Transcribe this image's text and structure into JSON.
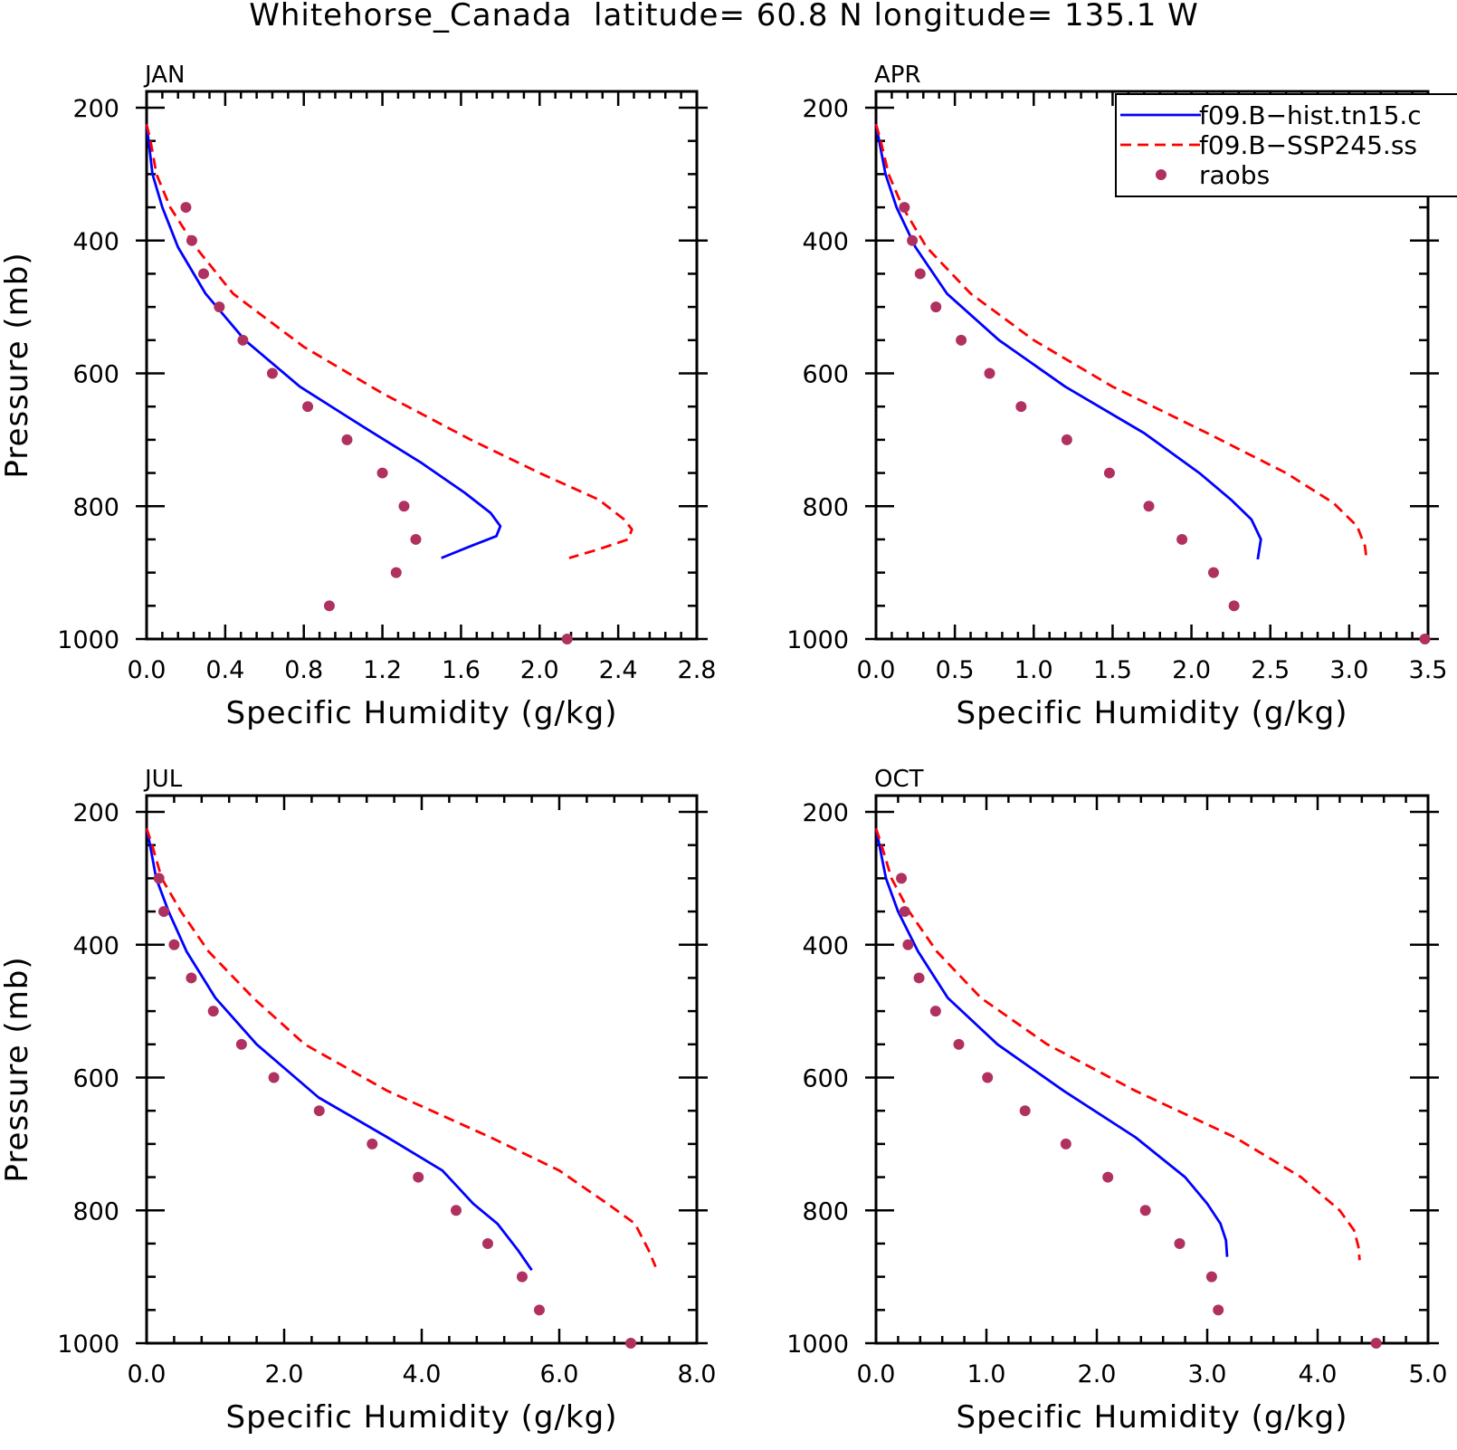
{
  "title": "Whitehorse_Canada  latitude= 60.8 N longitude= 135.1 W",
  "legend": {
    "entries": [
      {
        "label": "f09.B−hist.tn15.c",
        "style": "solid",
        "color": "#0000ff"
      },
      {
        "label": "f09.B−SSP245.ss",
        "style": "dashed",
        "color": "#ff0000"
      },
      {
        "label": "raobs",
        "style": "dot",
        "color": "#b03060"
      }
    ]
  },
  "chart_data": [
    {
      "type": "line",
      "panel": "JAN",
      "xlabel": "Specific Humidity (g/kg)",
      "ylabel": "Pressure (mb)",
      "xlim": [
        0,
        2.8
      ],
      "ylim": [
        1000,
        200
      ],
      "xticks": [
        "0.0",
        "0.4",
        "0.8",
        "1.2",
        "1.6",
        "2.0",
        "2.4",
        "2.8"
      ],
      "xtick_values": [
        0,
        0.4,
        0.8,
        1.2,
        1.6,
        2.0,
        2.4,
        2.8
      ],
      "yticks": [
        "200",
        "400",
        "600",
        "800",
        "1000"
      ],
      "ytick_values": [
        200,
        400,
        600,
        800,
        1000
      ],
      "series": [
        {
          "name": "f09.B−hist.tn15.c",
          "kind": "line",
          "color": "#0000ff",
          "dash": false,
          "x": [
            0.0,
            0.01,
            0.03,
            0.08,
            0.16,
            0.3,
            0.5,
            0.78,
            1.1,
            1.4,
            1.62,
            1.75,
            1.8,
            1.78,
            1.65,
            1.5
          ],
          "y": [
            225,
            250,
            300,
            350,
            410,
            480,
            550,
            620,
            680,
            735,
            780,
            810,
            830,
            845,
            860,
            878
          ]
        },
        {
          "name": "f09.B−SSP245.ss",
          "kind": "line",
          "color": "#ff0000",
          "dash": true,
          "x": [
            0.0,
            0.02,
            0.05,
            0.12,
            0.25,
            0.44,
            0.8,
            1.2,
            1.65,
            2.0,
            2.3,
            2.43,
            2.47,
            2.45,
            2.3,
            2.15
          ],
          "y": [
            225,
            250,
            300,
            350,
            410,
            480,
            560,
            630,
            700,
            750,
            790,
            820,
            835,
            850,
            865,
            878
          ]
        },
        {
          "name": "raobs",
          "kind": "scatter",
          "color": "#b03060",
          "x": [
            0.2,
            0.23,
            0.29,
            0.37,
            0.49,
            0.64,
            0.82,
            1.02,
            1.2,
            1.31,
            1.37,
            1.27,
            0.93,
            2.14
          ],
          "y": [
            350,
            400,
            450,
            500,
            550,
            600,
            650,
            700,
            750,
            800,
            850,
            900,
            950,
            1000
          ]
        }
      ]
    },
    {
      "type": "line",
      "panel": "APR",
      "xlabel": "Specific Humidity (g/kg)",
      "ylabel": "",
      "xlim": [
        0,
        3.5
      ],
      "ylim": [
        1000,
        200
      ],
      "xticks": [
        "0.0",
        "0.5",
        "1.0",
        "1.5",
        "2.0",
        "2.5",
        "3.0",
        "3.5"
      ],
      "xtick_values": [
        0,
        0.5,
        1.0,
        1.5,
        2.0,
        2.5,
        3.0,
        3.5
      ],
      "yticks": [
        "200",
        "400",
        "600",
        "800",
        "1000"
      ],
      "ytick_values": [
        200,
        400,
        600,
        800,
        1000
      ],
      "series": [
        {
          "name": "f09.B−hist.tn15.c",
          "kind": "line",
          "color": "#0000ff",
          "dash": false,
          "x": [
            0.0,
            0.02,
            0.06,
            0.13,
            0.25,
            0.45,
            0.78,
            1.2,
            1.7,
            2.05,
            2.25,
            2.38,
            2.44,
            2.42
          ],
          "y": [
            225,
            250,
            300,
            350,
            410,
            480,
            550,
            620,
            690,
            750,
            790,
            820,
            850,
            880
          ]
        },
        {
          "name": "f09.B−SSP245.ss",
          "kind": "line",
          "color": "#ff0000",
          "dash": true,
          "x": [
            0.0,
            0.03,
            0.08,
            0.17,
            0.32,
            0.6,
            1.0,
            1.5,
            2.1,
            2.6,
            2.9,
            3.05,
            3.1,
            3.11
          ],
          "y": [
            225,
            250,
            300,
            350,
            410,
            480,
            550,
            620,
            690,
            750,
            795,
            830,
            860,
            880
          ]
        },
        {
          "name": "raobs",
          "kind": "scatter",
          "color": "#b03060",
          "x": [
            0.18,
            0.23,
            0.28,
            0.38,
            0.54,
            0.72,
            0.92,
            1.21,
            1.48,
            1.73,
            1.94,
            2.14,
            2.27,
            3.48
          ],
          "y": [
            350,
            400,
            450,
            500,
            550,
            600,
            650,
            700,
            750,
            800,
            850,
            900,
            950,
            1000
          ]
        }
      ]
    },
    {
      "type": "line",
      "panel": "JUL",
      "xlabel": "Specific Humidity (g/kg)",
      "ylabel": "Pressure (mb)",
      "xlim": [
        0,
        8
      ],
      "ylim": [
        1000,
        200
      ],
      "xticks": [
        "0.0",
        "2.0",
        "4.0",
        "6.0",
        "8.0"
      ],
      "xtick_values": [
        0,
        2,
        4,
        6,
        8
      ],
      "yticks": [
        "200",
        "400",
        "600",
        "800",
        "1000"
      ],
      "ytick_values": [
        200,
        400,
        600,
        800,
        1000
      ],
      "series": [
        {
          "name": "f09.B−hist.tn15.c",
          "kind": "line",
          "color": "#0000ff",
          "dash": false,
          "x": [
            0.0,
            0.05,
            0.14,
            0.32,
            0.58,
            1.0,
            1.6,
            2.5,
            3.5,
            4.3,
            4.75,
            5.1,
            5.4,
            5.6
          ],
          "y": [
            225,
            250,
            300,
            350,
            410,
            480,
            550,
            630,
            690,
            740,
            790,
            820,
            860,
            890
          ]
        },
        {
          "name": "f09.B−SSP245.ss",
          "kind": "line",
          "color": "#ff0000",
          "dash": true,
          "x": [
            0.0,
            0.08,
            0.22,
            0.5,
            0.9,
            1.55,
            2.3,
            3.5,
            5.0,
            6.0,
            6.7,
            7.1,
            7.3,
            7.4
          ],
          "y": [
            225,
            250,
            300,
            350,
            410,
            480,
            550,
            620,
            690,
            740,
            790,
            820,
            860,
            885
          ]
        },
        {
          "name": "raobs",
          "kind": "scatter",
          "color": "#b03060",
          "x": [
            0.18,
            0.25,
            0.4,
            0.65,
            0.97,
            1.38,
            1.85,
            2.51,
            3.28,
            3.95,
            4.5,
            4.96,
            5.46,
            5.71,
            7.04
          ],
          "y": [
            300,
            350,
            400,
            450,
            500,
            550,
            600,
            650,
            700,
            750,
            800,
            850,
            900,
            950,
            1000
          ]
        }
      ]
    },
    {
      "type": "line",
      "panel": "OCT",
      "xlabel": "Specific Humidity (g/kg)",
      "ylabel": "",
      "xlim": [
        0,
        5
      ],
      "ylim": [
        1000,
        200
      ],
      "xticks": [
        "0.0",
        "1.0",
        "2.0",
        "3.0",
        "4.0",
        "5.0"
      ],
      "xtick_values": [
        0,
        1,
        2,
        3,
        4,
        5
      ],
      "yticks": [
        "200",
        "400",
        "600",
        "800",
        "1000"
      ],
      "ytick_values": [
        200,
        400,
        600,
        800,
        1000
      ],
      "series": [
        {
          "name": "f09.B−hist.tn15.c",
          "kind": "line",
          "color": "#0000ff",
          "dash": false,
          "x": [
            0.0,
            0.03,
            0.09,
            0.2,
            0.38,
            0.65,
            1.1,
            1.7,
            2.35,
            2.8,
            3.0,
            3.12,
            3.17,
            3.18
          ],
          "y": [
            225,
            250,
            300,
            350,
            410,
            480,
            550,
            620,
            690,
            750,
            790,
            820,
            845,
            870
          ]
        },
        {
          "name": "f09.B−SSP245.ss",
          "kind": "line",
          "color": "#ff0000",
          "dash": true,
          "x": [
            0.0,
            0.05,
            0.14,
            0.3,
            0.55,
            0.95,
            1.55,
            2.35,
            3.25,
            3.85,
            4.2,
            4.33,
            4.37,
            4.38
          ],
          "y": [
            225,
            250,
            300,
            350,
            410,
            480,
            550,
            620,
            690,
            750,
            800,
            830,
            855,
            875
          ]
        },
        {
          "name": "raobs",
          "kind": "scatter",
          "color": "#b03060",
          "x": [
            0.23,
            0.26,
            0.29,
            0.39,
            0.54,
            0.75,
            1.01,
            1.35,
            1.72,
            2.1,
            2.44,
            2.75,
            3.04,
            3.1,
            4.53
          ],
          "y": [
            300,
            350,
            400,
            450,
            500,
            550,
            600,
            650,
            700,
            750,
            800,
            850,
            900,
            950,
            1000
          ]
        }
      ]
    }
  ]
}
